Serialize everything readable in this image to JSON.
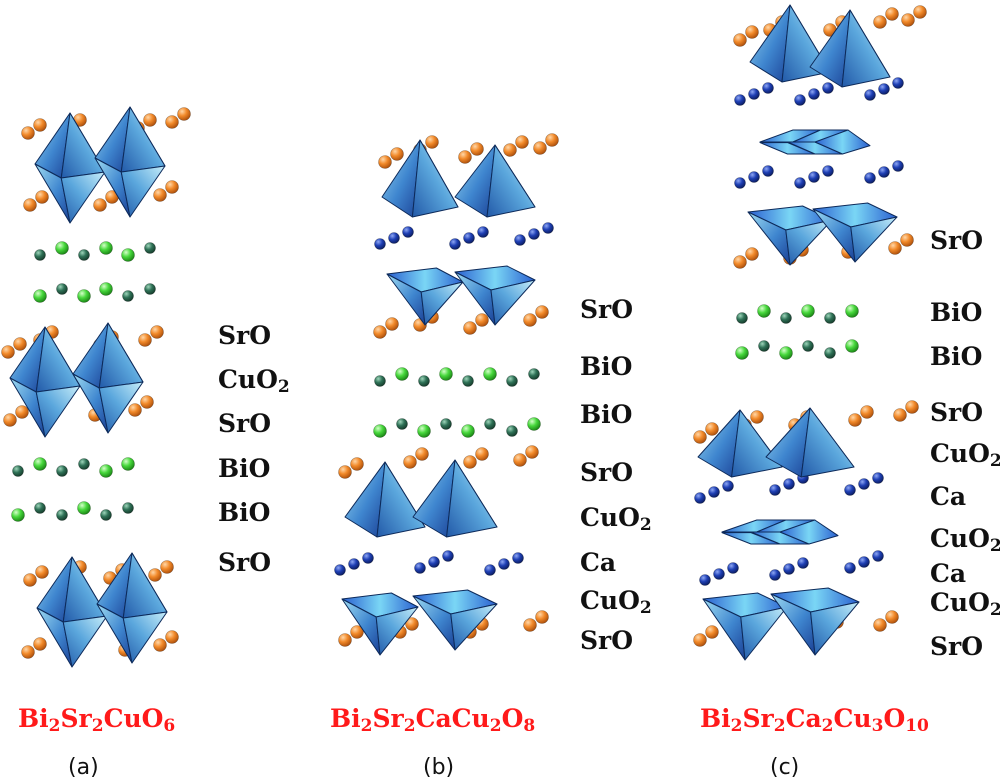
{
  "colors": {
    "oxygen": "#f07a22",
    "bi_dark": "#2e6b52",
    "bi_light": "#44d63a",
    "calcium": "#1a3aa8",
    "polyhedron_dark": "#1d4fa0",
    "polyhedron_light": "#86d3ee",
    "formula": "#ff1a1a"
  },
  "panels": [
    {
      "tag": "(a)",
      "formula": [
        {
          "t": "Bi"
        },
        {
          "s": "2"
        },
        {
          "t": "Sr"
        },
        {
          "s": "2"
        },
        {
          "t": "CuO"
        },
        {
          "s": "6"
        }
      ],
      "layers": [
        {
          "text": "SrO"
        },
        {
          "text": "CuO",
          "sub": "2"
        },
        {
          "text": "SrO"
        },
        {
          "text": "BiO"
        },
        {
          "text": "BiO"
        },
        {
          "text": "SrO"
        }
      ]
    },
    {
      "tag": "(b)",
      "formula": [
        {
          "t": "Bi"
        },
        {
          "s": "2"
        },
        {
          "t": "Sr"
        },
        {
          "s": "2"
        },
        {
          "t": "CaCu"
        },
        {
          "s": "2"
        },
        {
          "t": "O"
        },
        {
          "s": "8"
        }
      ],
      "layers": [
        {
          "text": "SrO"
        },
        {
          "text": "BiO"
        },
        {
          "text": "BiO"
        },
        {
          "text": "SrO"
        },
        {
          "text": "CuO",
          "sub": "2"
        },
        {
          "text": "Ca"
        },
        {
          "text": "CuO",
          "sub": "2"
        },
        {
          "text": "SrO"
        }
      ]
    },
    {
      "tag": "(c)",
      "formula": [
        {
          "t": "Bi"
        },
        {
          "s": "2"
        },
        {
          "t": "Sr"
        },
        {
          "s": "2"
        },
        {
          "t": "Ca"
        },
        {
          "s": "2"
        },
        {
          "t": "Cu"
        },
        {
          "s": "3"
        },
        {
          "t": "O"
        },
        {
          "s": "10"
        }
      ],
      "layers": [
        {
          "text": "SrO"
        },
        {
          "text": "BiO"
        },
        {
          "text": "BiO"
        },
        {
          "text": "SrO"
        },
        {
          "text": "CuO",
          "sub": "2"
        },
        {
          "text": "Ca"
        },
        {
          "text": "CuO",
          "sub": "2"
        },
        {
          "text": "Ca"
        },
        {
          "text": "CuO",
          "sub": "2"
        },
        {
          "text": "SrO"
        }
      ]
    }
  ]
}
